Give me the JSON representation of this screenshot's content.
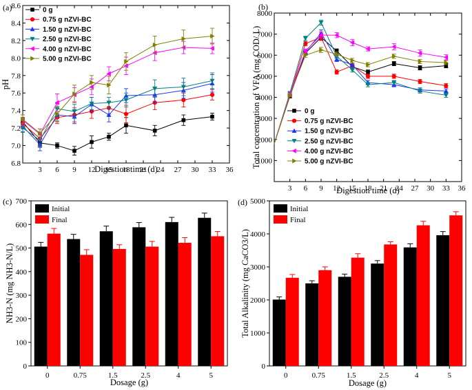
{
  "figure": {
    "description_domain": "chart-panels"
  },
  "chart_data": [
    {
      "panel": "a",
      "panel_label": "(a)",
      "type": "line",
      "xlabel": "Digestion time (d)",
      "ylabel": "pH",
      "xlim": [
        0,
        36
      ],
      "ylim": [
        6.8,
        8.6
      ],
      "xticks": [
        3,
        6,
        9,
        12,
        15,
        18,
        21,
        24,
        27,
        30,
        33,
        36
      ],
      "yticks": [
        6.8,
        7.0,
        7.2,
        7.4,
        7.6,
        7.8,
        8.0,
        8.2,
        8.4,
        8.6
      ],
      "x": [
        0,
        3,
        6,
        9,
        12,
        15,
        18,
        23,
        28,
        33
      ],
      "series": [
        {
          "name": "0 g",
          "color": "#000000",
          "marker": "square",
          "values": [
            7.27,
            7.03,
            7.0,
            6.94,
            7.04,
            7.1,
            7.23,
            7.17,
            7.29,
            7.33
          ],
          "errors": [
            0.05,
            0.05,
            0.03,
            0.05,
            0.07,
            0.04,
            0.09,
            0.06,
            0.06,
            0.04
          ]
        },
        {
          "name": "0.75 g nZVI-BC",
          "color": "#ff0000",
          "marker": "circle",
          "values": [
            7.25,
            7.08,
            7.32,
            7.35,
            7.39,
            7.43,
            7.36,
            7.49,
            7.52,
            7.58
          ],
          "errors": [
            0.06,
            0.06,
            0.07,
            0.08,
            0.08,
            0.07,
            0.1,
            0.08,
            0.08,
            0.06
          ]
        },
        {
          "name": "1.50 g nZVI-BC",
          "color": "#1a33ff",
          "marker": "triangle-up",
          "values": [
            7.22,
            7.01,
            7.35,
            7.33,
            7.47,
            7.35,
            7.57,
            7.58,
            7.63,
            7.71
          ],
          "errors": [
            0.06,
            0.07,
            0.07,
            0.08,
            0.08,
            0.08,
            0.08,
            0.09,
            0.09,
            0.1
          ]
        },
        {
          "name": "2.50 g nZVI-BC",
          "color": "#008080",
          "marker": "triangle-down",
          "values": [
            7.2,
            7.06,
            7.42,
            7.39,
            7.48,
            7.49,
            7.52,
            7.65,
            7.67,
            7.74
          ],
          "errors": [
            0.05,
            0.06,
            0.06,
            0.08,
            0.07,
            0.06,
            0.08,
            0.1,
            0.1,
            0.09
          ]
        },
        {
          "name": "4.00 g nZVI-BC",
          "color": "#ff00ff",
          "marker": "triangle-left",
          "values": [
            7.29,
            7.13,
            7.49,
            7.58,
            7.67,
            7.82,
            7.91,
            8.06,
            8.12,
            8.11
          ],
          "errors": [
            0.06,
            0.06,
            0.1,
            0.08,
            0.09,
            0.08,
            0.1,
            0.09,
            0.07,
            0.06
          ]
        },
        {
          "name": "5.00 g nZVI-BC",
          "color": "#808000",
          "marker": "triangle-right",
          "values": [
            7.3,
            7.14,
            7.36,
            7.59,
            7.72,
            7.69,
            7.96,
            8.15,
            8.22,
            8.25
          ],
          "errors": [
            0.05,
            0.05,
            0.09,
            0.1,
            0.08,
            0.1,
            0.1,
            0.1,
            0.1,
            0.09
          ]
        }
      ]
    },
    {
      "panel": "b",
      "panel_label": "(b)",
      "type": "line",
      "xlabel": "Digestion time (d)",
      "ylabel": "Total concentration of VFA (mg COD/ L)",
      "xlim": [
        0,
        36
      ],
      "ylim": [
        0,
        8000
      ],
      "xticks": [
        3,
        6,
        9,
        12,
        15,
        18,
        21,
        24,
        27,
        30,
        33,
        36
      ],
      "yticks": [
        1000,
        2000,
        3000,
        4000,
        5000,
        6000,
        7000,
        8000
      ],
      "x": [
        0,
        3,
        6,
        9,
        12,
        15,
        18,
        23,
        28,
        33
      ],
      "series": [
        {
          "name": "0 g",
          "color": "#000000",
          "marker": "square",
          "values": [
            1800,
            4050,
            6100,
            6850,
            6200,
            5450,
            5200,
            5600,
            5400,
            5500
          ],
          "errors": [
            0,
            80,
            100,
            120,
            100,
            100,
            100,
            100,
            100,
            100
          ]
        },
        {
          "name": "0.75 g nZVI-BC",
          "color": "#ff0000",
          "marker": "circle",
          "values": [
            1800,
            4100,
            6550,
            6850,
            5200,
            5500,
            5000,
            5000,
            4750,
            4550
          ],
          "errors": [
            0,
            80,
            100,
            150,
            100,
            100,
            100,
            100,
            100,
            100
          ]
        },
        {
          "name": "1.50 g nZVI-BC",
          "color": "#1a33ff",
          "marker": "triangle-up",
          "values": [
            1800,
            4150,
            6150,
            7050,
            5800,
            5550,
            4700,
            4600,
            4350,
            4300
          ],
          "errors": [
            0,
            80,
            100,
            150,
            100,
            100,
            100,
            100,
            100,
            100
          ]
        },
        {
          "name": "2.50 g nZVI-BC",
          "color": "#008080",
          "marker": "triangle-down",
          "values": [
            1800,
            4200,
            6800,
            7550,
            5950,
            5300,
            4600,
            4700,
            4300,
            4100
          ],
          "errors": [
            0,
            80,
            100,
            120,
            100,
            100,
            100,
            100,
            100,
            100
          ]
        },
        {
          "name": "4.00 g nZVI-BC",
          "color": "#ff00ff",
          "marker": "triangle-left",
          "values": [
            1800,
            4150,
            6200,
            6950,
            6950,
            6600,
            6300,
            6400,
            6100,
            5900
          ],
          "errors": [
            0,
            80,
            100,
            150,
            120,
            150,
            100,
            150,
            150,
            120
          ]
        },
        {
          "name": "5.00 g nZVI-BC",
          "color": "#808000",
          "marker": "triangle-right",
          "values": [
            1800,
            4100,
            6000,
            6250,
            6050,
            5750,
            5550,
            5950,
            5700,
            5650
          ],
          "errors": [
            0,
            80,
            100,
            120,
            100,
            100,
            100,
            100,
            100,
            100
          ]
        }
      ]
    },
    {
      "panel": "c",
      "panel_label": "(c)",
      "type": "bar",
      "xlabel": "Dosage (g)",
      "ylabel": "NH3-N (mg NH3-N/L)",
      "ylim": [
        0,
        700
      ],
      "yticks": [
        0,
        100,
        200,
        300,
        400,
        500,
        600,
        700
      ],
      "categories": [
        "0",
        "0.75",
        "1.5",
        "2.5",
        "4",
        "5"
      ],
      "series": [
        {
          "name": "Initial",
          "color": "#000000",
          "values": [
            506,
            538,
            571,
            588,
            610,
            628
          ],
          "errors": [
            18,
            20,
            22,
            20,
            20,
            20
          ]
        },
        {
          "name": "Final",
          "color": "#ff0000",
          "values": [
            561,
            471,
            496,
            506,
            522,
            550
          ],
          "errors": [
            22,
            22,
            18,
            22,
            22,
            20
          ]
        }
      ]
    },
    {
      "panel": "d",
      "panel_label": "(d)",
      "type": "bar",
      "xlabel": "Dosage (g)",
      "ylabel": "Total Alkalinity (mg CaCO3/L)",
      "ylim": [
        0,
        5000
      ],
      "yticks": [
        0,
        1000,
        2000,
        3000,
        4000,
        5000
      ],
      "categories": [
        "0",
        "0.75",
        "1.5",
        "2.5",
        "4",
        "5"
      ],
      "series": [
        {
          "name": "Initial",
          "color": "#000000",
          "values": [
            2010,
            2500,
            2700,
            3100,
            3590,
            3960
          ],
          "errors": [
            80,
            80,
            80,
            90,
            110,
            110
          ]
        },
        {
          "name": "Final",
          "color": "#ff0000",
          "values": [
            2670,
            2900,
            3280,
            3680,
            4260,
            4560
          ],
          "errors": [
            100,
            100,
            120,
            80,
            120,
            110
          ]
        }
      ]
    }
  ]
}
